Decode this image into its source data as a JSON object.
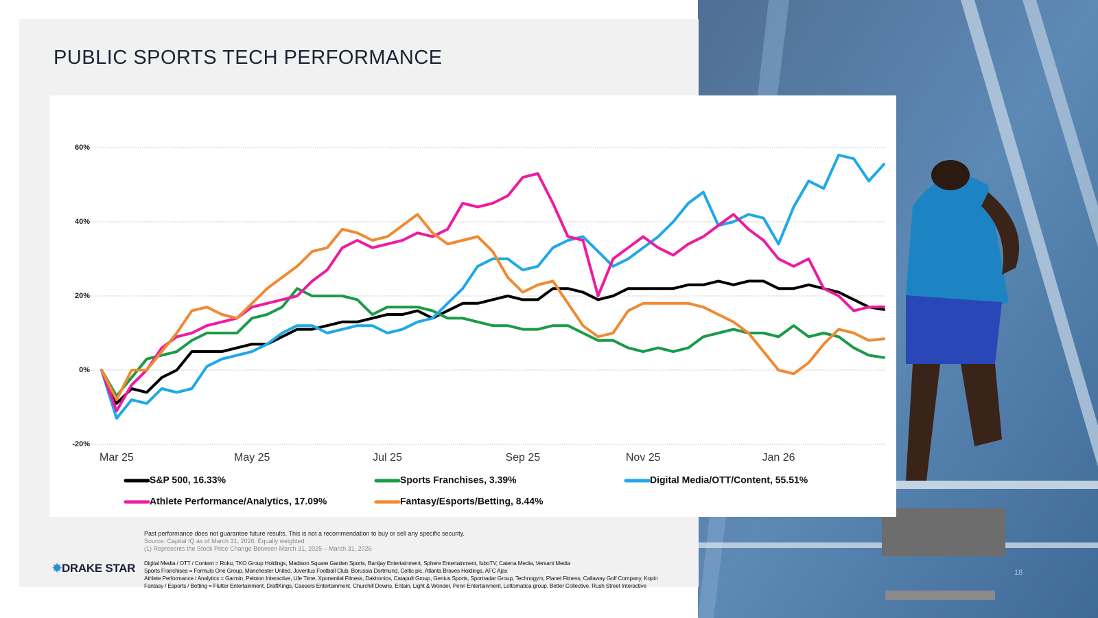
{
  "header": {
    "title": "PUBLIC SPORTS TECH PERFORMANCE"
  },
  "chart_data": {
    "type": "line",
    "categories": [
      null,
      "Mar 25",
      null,
      null,
      null,
      null,
      null,
      null,
      null,
      null,
      "May 25",
      null,
      null,
      null,
      null,
      null,
      null,
      null,
      null,
      "Jul 25",
      null,
      null,
      null,
      null,
      null,
      null,
      null,
      null,
      "Sep 25",
      null,
      null,
      null,
      null,
      null,
      null,
      null,
      "Nov 25",
      null,
      null,
      null,
      null,
      null,
      null,
      null,
      null,
      "Jan 26",
      null,
      null,
      null,
      null,
      null,
      null,
      null
    ],
    "ylim": [
      -20,
      60
    ],
    "yticks": [
      {
        "value": -20,
        "label": "-20%"
      },
      {
        "value": 0,
        "label": "0%"
      },
      {
        "value": 20,
        "label": "20%"
      },
      {
        "value": 40,
        "label": "40%"
      },
      {
        "value": 60,
        "label": "60%"
      }
    ],
    "grid": true,
    "series": [
      {
        "name": "S&P 500, 16.33%",
        "color": "#000000",
        "values": [
          0,
          -9,
          -5,
          -6,
          -2,
          0,
          5,
          5,
          5,
          6,
          7,
          7,
          9,
          11,
          11,
          12,
          13,
          13,
          14,
          15,
          15,
          16,
          14,
          16,
          18,
          18,
          19,
          20,
          19,
          19,
          22,
          22,
          21,
          19,
          20,
          22,
          22,
          22,
          22,
          23,
          23,
          24,
          23,
          24,
          24,
          22,
          22,
          23,
          22,
          21,
          19,
          17,
          16.33
        ]
      },
      {
        "name": "Sports Franchises, 3.39%",
        "color": "#1a9b48",
        "values": [
          0,
          -7,
          -2,
          3,
          4,
          5,
          8,
          10,
          10,
          10,
          14,
          15,
          17,
          22,
          20,
          20,
          20,
          19,
          15,
          17,
          17,
          17,
          16,
          14,
          14,
          13,
          12,
          12,
          11,
          11,
          12,
          12,
          10,
          8,
          8,
          6,
          5,
          6,
          5,
          6,
          9,
          10,
          11,
          10,
          10,
          9,
          12,
          9,
          10,
          9,
          6,
          4,
          3.39
        ]
      },
      {
        "name": "Digital Media/OTT/Content, 55.51%",
        "color": "#1fa8e8",
        "values": [
          0,
          -13,
          -8,
          -9,
          -5,
          -6,
          -5,
          1,
          3,
          4,
          5,
          7,
          10,
          12,
          12,
          10,
          11,
          12,
          12,
          10,
          11,
          13,
          14,
          18,
          22,
          28,
          30,
          30,
          27,
          28,
          33,
          35,
          36,
          32,
          28,
          30,
          33,
          36,
          40,
          45,
          48,
          39,
          40,
          42,
          41,
          34,
          44,
          51,
          49,
          58,
          57,
          51,
          55.51
        ]
      },
      {
        "name": "Athlete Performance/Analytics, 17.09%",
        "color": "#ee1ba0",
        "values": [
          0,
          -11,
          -4,
          0,
          6,
          9,
          10,
          12,
          13,
          14,
          17,
          18,
          19,
          20,
          24,
          27,
          33,
          35,
          33,
          34,
          35,
          37,
          36,
          38,
          45,
          44,
          45,
          47,
          52,
          53,
          45,
          36,
          35,
          20,
          30,
          33,
          36,
          33,
          31,
          34,
          36,
          39,
          42,
          38,
          35,
          30,
          28,
          30,
          22,
          20,
          16,
          17,
          17.09
        ]
      },
      {
        "name": "Fantasy/Esports/Betting, 8.44%",
        "color": "#ef8a33",
        "values": [
          0,
          -8,
          0,
          0,
          5,
          10,
          16,
          17,
          15,
          14,
          18,
          22,
          25,
          28,
          32,
          33,
          38,
          37,
          35,
          36,
          39,
          42,
          37,
          34,
          35,
          36,
          32,
          25,
          21,
          23,
          24,
          18,
          12,
          9,
          10,
          16,
          18,
          18,
          18,
          18,
          17,
          15,
          13,
          10,
          5,
          0,
          -1,
          2,
          7,
          11,
          10,
          8,
          8.44
        ]
      }
    ]
  },
  "footer": {
    "disclaimer": "Past performance does not guarantee future results. This is not a recommendation to buy or sell any specific security.",
    "source": "Source: Capital IQ as of March 31, 2026. Equally weighted",
    "note": "(1) Represents the Stock Price Change Between March 31, 2025 – March 31, 2026",
    "constituents": [
      "Digital Media / OTT / Content = Roku, TKO Group Holdings, Madison Square Garden Sports, Banijay Entertainment, Sphere Entertainment, fuboTV, Catena Media, Versant Media",
      "Sports Franchises = Formula One Group, Manchester United, Juventus Football Club, Borussia Dortmund, Celtic plc, Atlanta Braves Holdings, AFC Ajax",
      "Athlete Performance / Analytics = Garmin, Peloton Interactive, Life Time, Xponential Fitness, Daktronics, Catapult Group, Genius Sports, Sportradar Group, Technogym, Planet Fitness, Callaway Golf Company, Kopin",
      "Fantasy / Esports / Betting = Flutter Entertainment, DraftKings, Caesers Entertainment, Churchill Downs, Entain, Light & Wonder, Penn Entertainment, Lottomatica group, Better Collective, Rush Street Interactive"
    ]
  },
  "logo": "DRAKE STAR",
  "page_number": "18"
}
